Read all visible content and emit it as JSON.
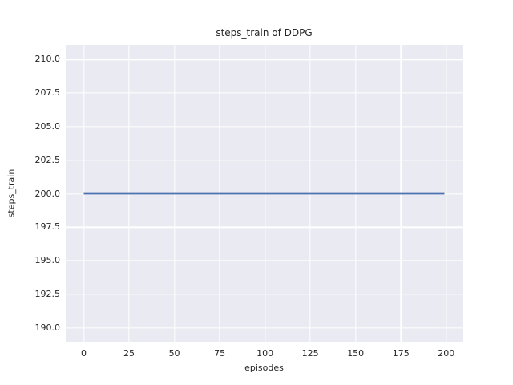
{
  "figure": {
    "title": "steps_train of DDPG",
    "xlabel": "episodes",
    "ylabel": "steps_train"
  },
  "chart_data": {
    "type": "line",
    "title": "steps_train of DDPG",
    "xlabel": "episodes",
    "ylabel": "steps_train",
    "x_tick_labels": [
      "0",
      "25",
      "50",
      "75",
      "100",
      "125",
      "150",
      "175",
      "200"
    ],
    "x_tick_values": [
      0,
      25,
      50,
      75,
      100,
      125,
      150,
      175,
      200
    ],
    "y_tick_labels": [
      "190.0",
      "192.5",
      "195.0",
      "197.5",
      "200.0",
      "202.5",
      "205.0",
      "207.5",
      "210.0"
    ],
    "y_tick_values": [
      190.0,
      192.5,
      195.0,
      197.5,
      200.0,
      202.5,
      205.0,
      207.5,
      210.0
    ],
    "xlim": [
      -9.95,
      208.95
    ],
    "ylim": [
      188.9,
      211.1
    ],
    "grid": true,
    "legend_position": "none",
    "series": [
      {
        "name": "steps_train",
        "color": "#4c72b0",
        "x": [
          0,
          199
        ],
        "y": [
          200,
          200
        ]
      }
    ]
  },
  "style": {
    "figure_bg": "#ffffff",
    "plot_bg": "#eaeaf2",
    "grid_color": "#ffffff",
    "text_color": "#262626",
    "line_color": "#4c72b0"
  }
}
